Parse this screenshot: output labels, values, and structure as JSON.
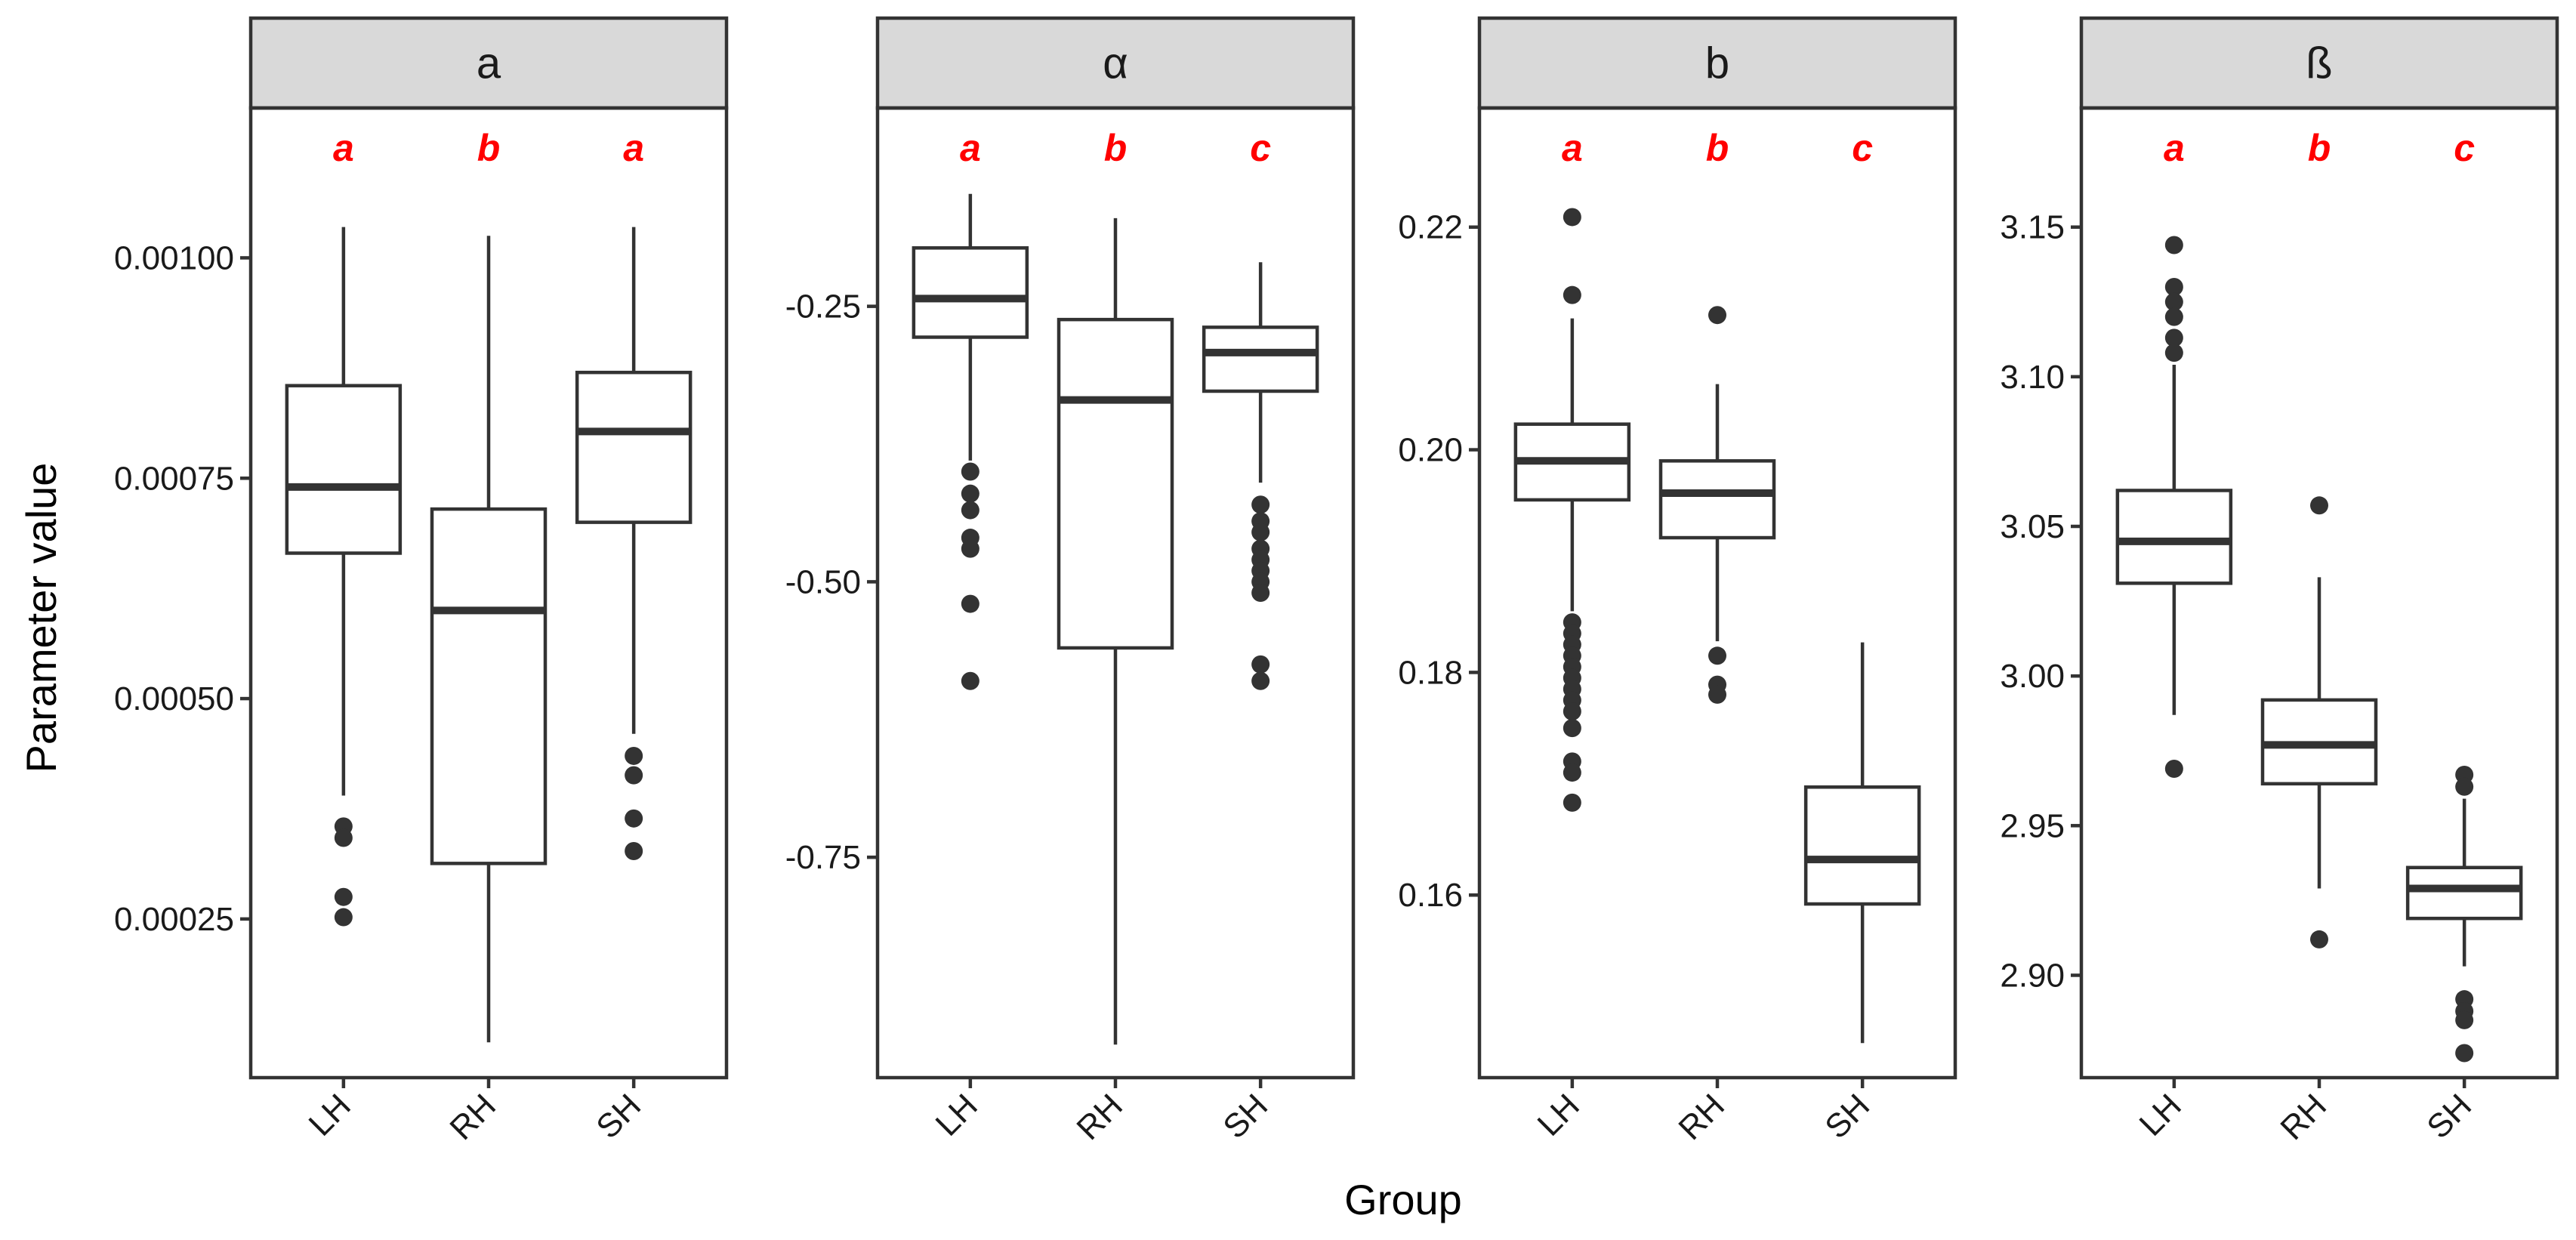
{
  "chart_data": {
    "type": "boxplot",
    "xlabel": "Group",
    "ylabel": "Parameter value",
    "colors": {
      "box_line": "#333333",
      "strip_fill": "#d9d9d9",
      "letter": "#ff0000",
      "outlier": "#333333"
    },
    "panels": [
      {
        "title": "a",
        "ylim": [
          7e-05,
          0.00117
        ],
        "yticks": [
          0.00025,
          0.0005,
          0.00075,
          0.001
        ],
        "ytick_labels": [
          "0.00025",
          "0.00050",
          "0.00075",
          "0.00100"
        ],
        "groups": [
          {
            "name": "LH",
            "letter": "a",
            "whisker_low": 0.00039,
            "q1": 0.000665,
            "median": 0.00074,
            "q3": 0.000855,
            "whisker_high": 0.001035,
            "outliers": [
              0.000355,
              0.000342,
              0.000275,
              0.000252
            ]
          },
          {
            "name": "RH",
            "letter": "b",
            "whisker_low": 0.00011,
            "q1": 0.000313,
            "median": 0.0006,
            "q3": 0.000715,
            "whisker_high": 0.001025,
            "outliers": []
          },
          {
            "name": "SH",
            "letter": "a",
            "whisker_low": 0.00046,
            "q1": 0.0007,
            "median": 0.000803,
            "q3": 0.00087,
            "whisker_high": 0.001035,
            "outliers": [
              0.000435,
              0.000413,
              0.000364,
              0.000327
            ]
          }
        ]
      },
      {
        "title": "α",
        "ylim": [
          -0.95,
          -0.07
        ],
        "yticks": [
          -0.75,
          -0.5,
          -0.25
        ],
        "ytick_labels": [
          "-0.75",
          "-0.50",
          "-0.25"
        ],
        "groups": [
          {
            "name": "LH",
            "letter": "a",
            "whisker_low": -0.39,
            "q1": -0.278,
            "median": -0.243,
            "q3": -0.197,
            "whisker_high": -0.148,
            "outliers": [
              -0.4,
              -0.42,
              -0.435,
              -0.46,
              -0.47,
              -0.52,
              -0.59
            ]
          },
          {
            "name": "RH",
            "letter": "b",
            "whisker_low": -0.92,
            "q1": -0.56,
            "median": -0.335,
            "q3": -0.262,
            "whisker_high": -0.17,
            "outliers": []
          },
          {
            "name": "SH",
            "letter": "c",
            "whisker_low": -0.41,
            "q1": -0.327,
            "median": -0.292,
            "q3": -0.269,
            "whisker_high": -0.21,
            "outliers": [
              -0.43,
              -0.445,
              -0.455,
              -0.47,
              -0.48,
              -0.49,
              -0.5,
              -0.51,
              -0.575,
              -0.59
            ]
          }
        ]
      },
      {
        "title": "b",
        "ylim": [
          0.1436,
          0.2307
        ],
        "yticks": [
          0.16,
          0.18,
          0.2,
          0.22
        ],
        "ytick_labels": [
          "0.16",
          "0.18",
          "0.20",
          "0.22"
        ],
        "groups": [
          {
            "name": "LH",
            "letter": "a",
            "whisker_low": 0.1855,
            "q1": 0.1955,
            "median": 0.199,
            "q3": 0.2023,
            "whisker_high": 0.2118,
            "outliers": [
              0.2209,
              0.2139,
              0.1845,
              0.1835,
              0.1825,
              0.1815,
              0.1805,
              0.1795,
              0.1785,
              0.1775,
              0.1765,
              0.175,
              0.172,
              0.171,
              0.1683
            ]
          },
          {
            "name": "RH",
            "letter": "b",
            "whisker_low": 0.1828,
            "q1": 0.1921,
            "median": 0.1961,
            "q3": 0.199,
            "whisker_high": 0.2059,
            "outliers": [
              0.2121,
              0.1815,
              0.1789,
              0.178
            ]
          },
          {
            "name": "SH",
            "letter": "c",
            "whisker_low": 0.1467,
            "q1": 0.1592,
            "median": 0.1632,
            "q3": 0.1697,
            "whisker_high": 0.1827,
            "outliers": []
          }
        ]
      },
      {
        "title": "ß",
        "ylim": [
          2.8658,
          3.1898
        ],
        "yticks": [
          2.9,
          2.95,
          3.0,
          3.05,
          3.1,
          3.15
        ],
        "ytick_labels": [
          "2.90",
          "2.95",
          "3.00",
          "3.05",
          "3.10",
          "3.15"
        ],
        "groups": [
          {
            "name": "LH",
            "letter": "a",
            "whisker_low": 2.987,
            "q1": 3.031,
            "median": 3.045,
            "q3": 3.062,
            "whisker_high": 3.104,
            "outliers": [
              3.144,
              3.13,
              3.125,
              3.12,
              3.113,
              3.108,
              2.969
            ]
          },
          {
            "name": "RH",
            "letter": "b",
            "whisker_low": 2.929,
            "q1": 2.964,
            "median": 2.977,
            "q3": 2.992,
            "whisker_high": 3.033,
            "outliers": [
              3.057,
              2.912
            ]
          },
          {
            "name": "SH",
            "letter": "c",
            "whisker_low": 2.903,
            "q1": 2.919,
            "median": 2.929,
            "q3": 2.936,
            "whisker_high": 2.959,
            "outliers": [
              2.967,
              2.963,
              2.892,
              2.888,
              2.885,
              2.874
            ]
          }
        ]
      }
    ]
  }
}
